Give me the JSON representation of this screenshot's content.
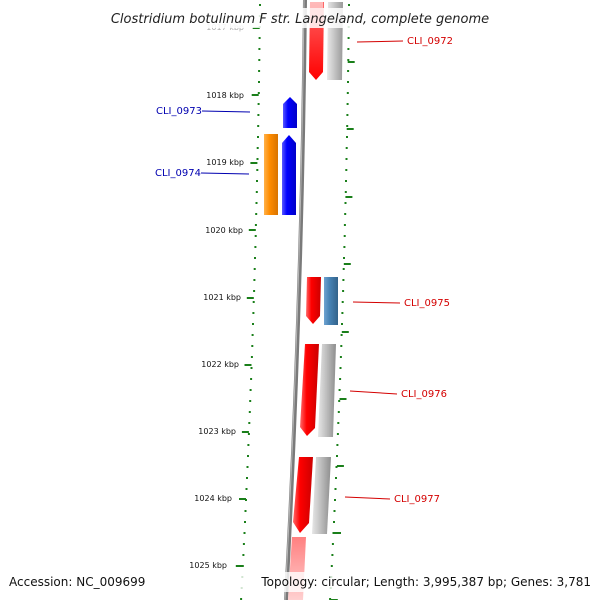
{
  "map": {
    "title": "Clostridium botulinum F str. Langeland, complete genome",
    "accession": "Accession: NC_009699",
    "summary": "Topology: circular; Length: 3,995,387 bp; Genes: 3,781",
    "ruler_labels": [
      "1017 kbp",
      "1018 kbp",
      "1019 kbp",
      "1020 kbp",
      "1021 kbp",
      "1022 kbp",
      "1023 kbp",
      "1024 kbp",
      "1025 kbp"
    ],
    "genes": [
      {
        "id": "CLI_0972",
        "strand": "forward",
        "color": "#ff0000",
        "partner_color": "#b4b4b4",
        "label_color": "#d40000"
      },
      {
        "id": "CLI_0973",
        "strand": "reverse",
        "color": "#0000ff",
        "label_color": "#0000b0"
      },
      {
        "id": "CLI_0974",
        "strand": "reverse",
        "color": "#0000ff",
        "partner_color": "#ff8c00",
        "label_color": "#0000b0"
      },
      {
        "id": "CLI_0975",
        "strand": "forward",
        "color": "#ff0000",
        "partner_color": "#4682b4",
        "label_color": "#d40000"
      },
      {
        "id": "CLI_0976",
        "strand": "forward",
        "color": "#ff0000",
        "partner_color": "#b4b4b4",
        "label_color": "#d40000"
      },
      {
        "id": "CLI_0977",
        "strand": "forward",
        "color": "#ff0000",
        "partner_color": "#b4b4b4",
        "label_color": "#d40000"
      }
    ],
    "colors": {
      "backbone": "#7a7a7a",
      "tick": "#1a7f1a"
    }
  }
}
